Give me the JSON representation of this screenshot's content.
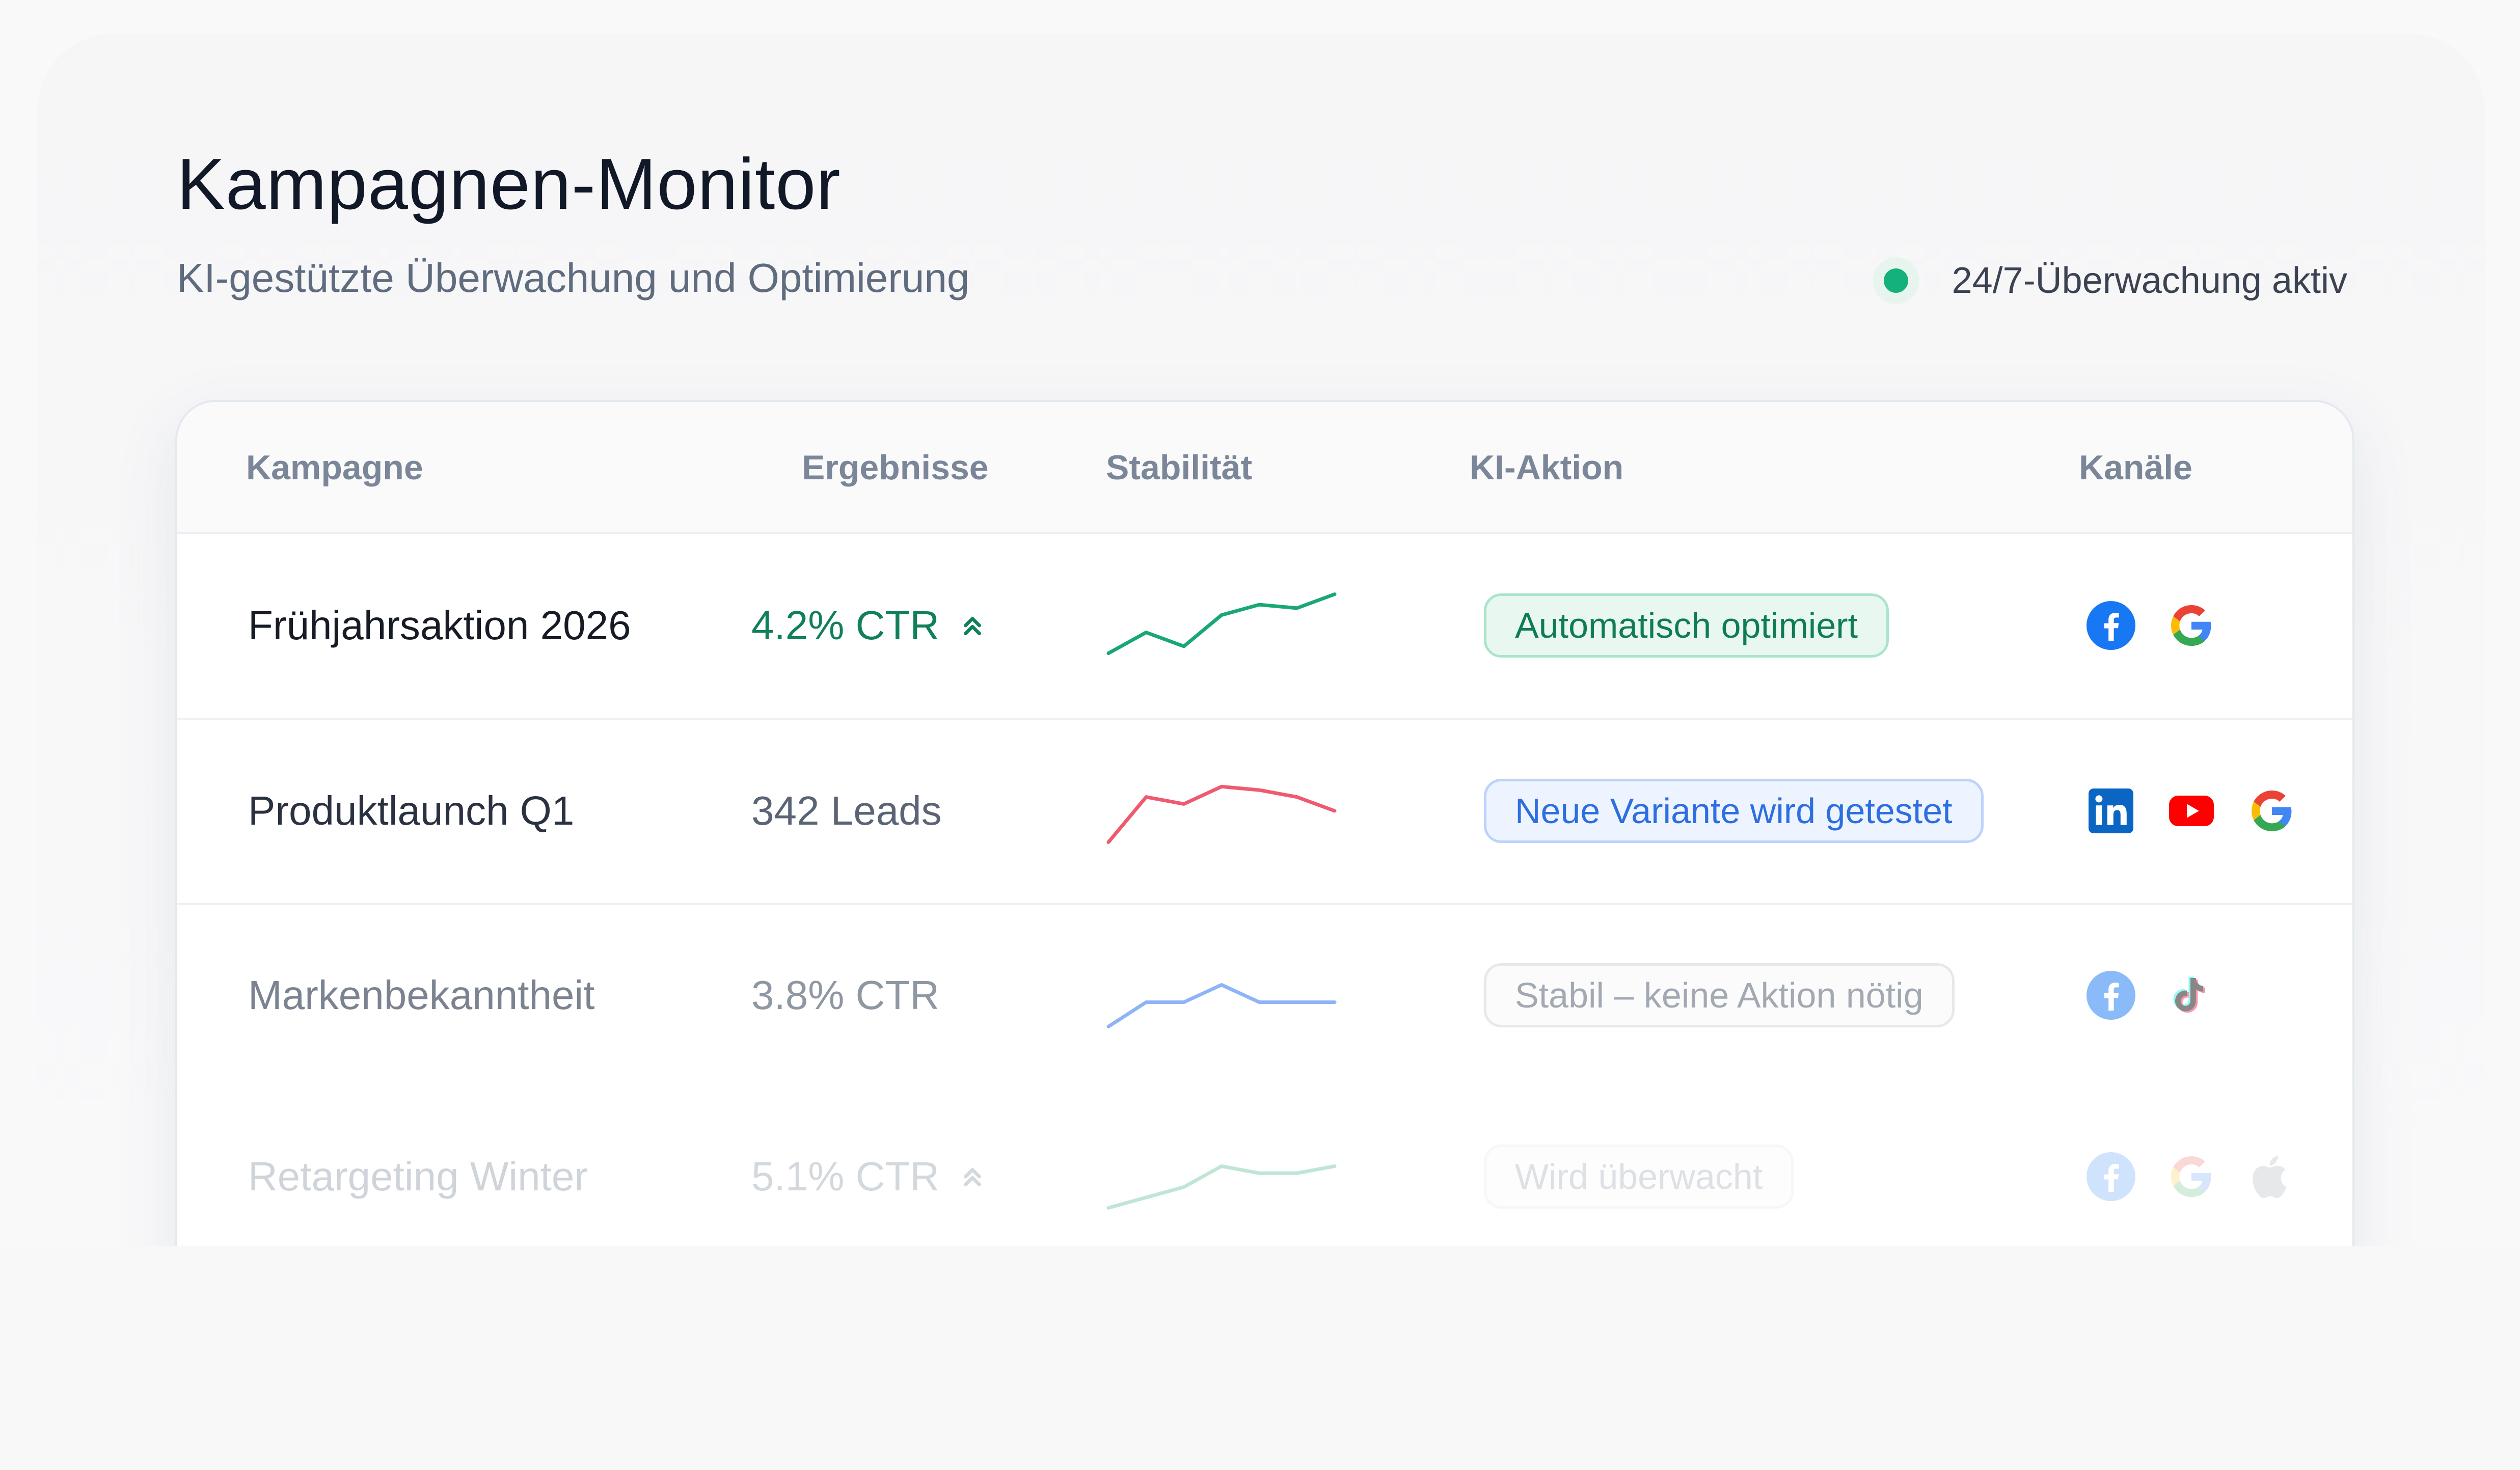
{
  "header": {
    "title": "Kampagnen-Monitor",
    "subtitle": "KI-gestützte Überwachung und Optimierung",
    "status_text": "24/7-Überwachung aktiv"
  },
  "table": {
    "columns": [
      "Kampagne",
      "Ergebnisse",
      "Stabilität",
      "KI-Aktion",
      "Kanäle"
    ],
    "rows": [
      {
        "name": "Frühjahrsaktion 2026",
        "result": "4.2% CTR",
        "trend": "up",
        "spark": [
          3,
          9,
          5,
          14,
          17,
          16,
          20
        ],
        "spark_color": "#19a873",
        "action": "Automatisch optimiert",
        "action_style": "green",
        "channels": [
          "facebook-icon",
          "google-icon"
        ]
      },
      {
        "name": "Produktlaunch Q1",
        "result": "342 Leads",
        "trend": "",
        "spark": [
          2,
          15,
          13,
          18,
          17,
          15,
          11
        ],
        "spark_color": "#ee5a6f",
        "action": "Neue Variante wird getestet",
        "action_style": "blue",
        "channels": [
          "linkedin-icon",
          "youtube-icon",
          "google-icon"
        ]
      },
      {
        "name": "Markenbekanntheit",
        "result": "3.8% CTR",
        "trend": "",
        "spark": [
          2,
          9,
          9,
          14,
          9,
          9,
          9
        ],
        "spark_color": "#8eb4f7",
        "action": "Stabil – keine Aktion nötig",
        "action_style": "grey",
        "channels": [
          "facebook-icon",
          "tiktok-icon"
        ]
      },
      {
        "name": "Retargeting Winter",
        "result": "5.1% CTR",
        "trend": "up",
        "spark": [
          2,
          5,
          8,
          14,
          12,
          12,
          14
        ],
        "spark_color": "#bfe6d4",
        "action": "Wird überwacht",
        "action_style": "faint",
        "channels": [
          "facebook-icon",
          "google-icon",
          "apple-icon"
        ]
      }
    ]
  }
}
